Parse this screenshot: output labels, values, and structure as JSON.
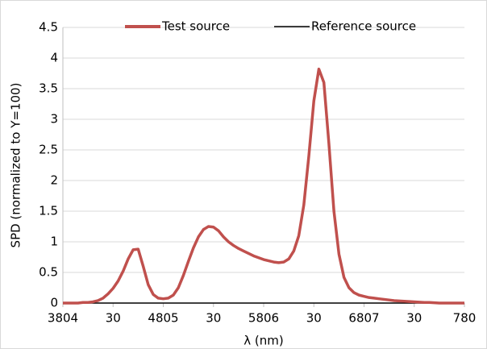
{
  "chart_data": {
    "type": "line",
    "xlabel": "λ (nm)",
    "ylabel": "SPD (normalized to Y=100)",
    "x": [
      380,
      385,
      390,
      395,
      400,
      405,
      410,
      415,
      420,
      425,
      430,
      435,
      440,
      445,
      450,
      455,
      460,
      465,
      470,
      475,
      480,
      485,
      490,
      495,
      500,
      505,
      510,
      515,
      520,
      525,
      530,
      535,
      540,
      545,
      550,
      555,
      560,
      565,
      570,
      575,
      580,
      585,
      590,
      595,
      600,
      605,
      610,
      615,
      620,
      625,
      630,
      635,
      640,
      645,
      650,
      655,
      660,
      665,
      670,
      675,
      680,
      685,
      690,
      695,
      700,
      705,
      710,
      715,
      720,
      725,
      730,
      735,
      740,
      745,
      750,
      755,
      760,
      765,
      770,
      775,
      780
    ],
    "series": [
      {
        "name": "Test source",
        "color": "#c0504d",
        "values": [
          0,
          0,
          0,
          0,
          0.01,
          0.01,
          0.02,
          0.04,
          0.08,
          0.15,
          0.24,
          0.36,
          0.52,
          0.72,
          0.87,
          0.88,
          0.6,
          0.3,
          0.14,
          0.08,
          0.07,
          0.08,
          0.13,
          0.25,
          0.45,
          0.68,
          0.9,
          1.08,
          1.2,
          1.25,
          1.24,
          1.18,
          1.08,
          1.0,
          0.94,
          0.89,
          0.85,
          0.81,
          0.77,
          0.74,
          0.71,
          0.69,
          0.67,
          0.66,
          0.67,
          0.72,
          0.85,
          1.1,
          1.6,
          2.4,
          3.3,
          3.82,
          3.6,
          2.6,
          1.5,
          0.8,
          0.42,
          0.25,
          0.17,
          0.13,
          0.11,
          0.09,
          0.08,
          0.07,
          0.06,
          0.05,
          0.04,
          0.035,
          0.03,
          0.025,
          0.02,
          0.015,
          0.01,
          0.01,
          0.005,
          0,
          0,
          0,
          0,
          0,
          0
        ]
      },
      {
        "name": "Reference source",
        "color": "#000000",
        "values": [
          0,
          0,
          0,
          0,
          0,
          0,
          0,
          0,
          0,
          0,
          0,
          0,
          0,
          0,
          0,
          0,
          0,
          0,
          0,
          0,
          0,
          0,
          0,
          0,
          0,
          0,
          0,
          0,
          0,
          0,
          0,
          0,
          0,
          0,
          0,
          0,
          0,
          0,
          0,
          0,
          0,
          0,
          0,
          0,
          0,
          0,
          0,
          0,
          0,
          0,
          0,
          0,
          0,
          0,
          0,
          0,
          0,
          0,
          0,
          0,
          0,
          0,
          0,
          0,
          0,
          0,
          0,
          0,
          0,
          0,
          0,
          0,
          0,
          0,
          0,
          0,
          0,
          0,
          0,
          0,
          0
        ]
      }
    ],
    "xlim": [
      380,
      780
    ],
    "xticks": [
      {
        "value": 380,
        "label": "3804"
      },
      {
        "value": 430,
        "label": "30"
      },
      {
        "value": 480,
        "label": "4805"
      },
      {
        "value": 530,
        "label": "30"
      },
      {
        "value": 580,
        "label": "5806"
      },
      {
        "value": 630,
        "label": "30"
      },
      {
        "value": 680,
        "label": "6807"
      },
      {
        "value": 730,
        "label": "30"
      },
      780
    ],
    "ylim": [
      0,
      4.5
    ],
    "yticks": [
      0,
      0.5,
      1,
      1.5,
      2,
      2.5,
      3,
      3.5,
      4,
      4.5
    ],
    "grid": true,
    "legend": "top"
  }
}
